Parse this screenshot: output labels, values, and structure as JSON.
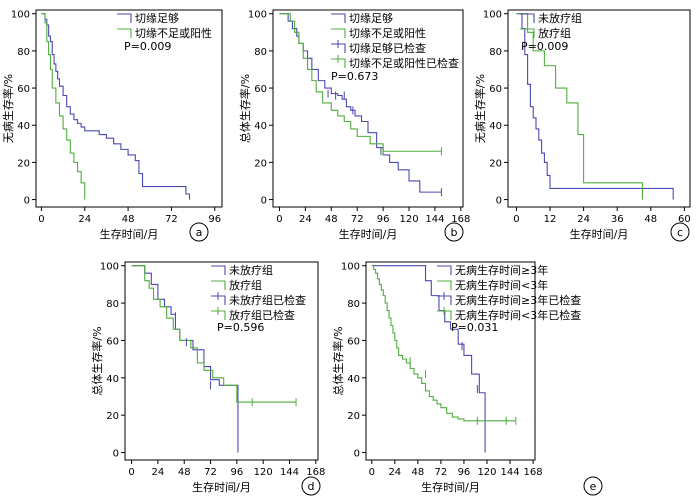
{
  "colors": {
    "blue": "#4a4ab2",
    "green": "#4fae3d",
    "axis": "#000000"
  },
  "chart_data": [
    {
      "id": "a",
      "type": "line",
      "xlabel": "生存时间/月",
      "ylabel": "无病生存率/%",
      "xticks": [
        0,
        24,
        48,
        72,
        96
      ],
      "yticks": [
        0,
        20,
        40,
        60,
        80,
        100
      ],
      "xlim": [
        -3,
        100
      ],
      "ylim": [
        -4,
        102
      ],
      "legend": [
        "切缘足够",
        "切缘不足或阳性"
      ],
      "pvalue": "P=0.009",
      "series": [
        {
          "name": "切缘足够",
          "color": "blue",
          "x": [
            0,
            2,
            3,
            4,
            5,
            6,
            7,
            8,
            9,
            10,
            12,
            14,
            16,
            18,
            20,
            22,
            24,
            28,
            32,
            36,
            40,
            44,
            48,
            52,
            54,
            56,
            60,
            70,
            80,
            82
          ],
          "y": [
            100,
            97,
            94,
            88,
            85,
            78,
            73,
            69,
            65,
            61,
            56,
            50,
            46,
            43,
            41,
            39,
            37,
            37,
            35,
            33,
            30,
            27,
            24,
            21,
            14,
            7,
            7,
            7,
            3,
            0
          ]
        },
        {
          "name": "切缘不足或阳性",
          "color": "green",
          "x": [
            0,
            2,
            3,
            4,
            5,
            6,
            8,
            10,
            12,
            14,
            16,
            18,
            20,
            22,
            24
          ],
          "y": [
            100,
            95,
            85,
            78,
            70,
            60,
            52,
            45,
            38,
            32,
            25,
            20,
            15,
            9,
            0
          ]
        }
      ],
      "censors": []
    },
    {
      "id": "b",
      "type": "line",
      "xlabel": "生存时间/月",
      "ylabel": "总体生存率/%",
      "xticks": [
        0,
        24,
        48,
        72,
        96,
        120,
        144,
        168
      ],
      "yticks": [
        0,
        20,
        40,
        60,
        80,
        100
      ],
      "xlim": [
        -6,
        170
      ],
      "ylim": [
        -4,
        102
      ],
      "legend": [
        "切缘足够",
        "切缘不足或阳性",
        "切缘足够已检查",
        "切缘不足或阳性已检查"
      ],
      "pvalue": "P=0.673",
      "series": [
        {
          "name": "切缘足够",
          "color": "blue",
          "x": [
            0,
            8,
            12,
            16,
            18,
            22,
            26,
            30,
            36,
            42,
            48,
            54,
            58,
            62,
            66,
            70,
            76,
            82,
            90,
            96,
            102,
            110,
            120,
            130,
            150
          ],
          "y": [
            100,
            96,
            92,
            88,
            84,
            80,
            76,
            70,
            64,
            60,
            57,
            56,
            54,
            50,
            48,
            45,
            42,
            36,
            28,
            24,
            20,
            16,
            10,
            4,
            4
          ]
        },
        {
          "name": "切缘不足或阳性",
          "color": "green",
          "x": [
            0,
            10,
            14,
            18,
            22,
            26,
            30,
            34,
            40,
            48,
            54,
            60,
            66,
            72,
            84,
            96,
            150
          ],
          "y": [
            100,
            96,
            90,
            84,
            76,
            70,
            64,
            58,
            52,
            48,
            45,
            42,
            38,
            34,
            30,
            26,
            26
          ]
        }
      ],
      "censors": [
        {
          "color": "blue",
          "x": [
            45,
            52,
            60,
            68,
            94,
            150
          ],
          "y": [
            57,
            56,
            56,
            48,
            26,
            4
          ]
        },
        {
          "color": "green",
          "x": [
            96,
            150
          ],
          "y": [
            26,
            26
          ]
        }
      ]
    },
    {
      "id": "c",
      "type": "line",
      "xlabel": "生存时间/月",
      "ylabel": "无病生存率/%",
      "xticks": [
        0,
        12,
        24,
        36,
        48,
        60
      ],
      "yticks": [
        0,
        20,
        40,
        60,
        80,
        100
      ],
      "xlim": [
        -3,
        62
      ],
      "ylim": [
        -4,
        102
      ],
      "legend": [
        "未放疗组",
        "放疗组"
      ],
      "pvalue": "P=0.009",
      "series": [
        {
          "name": "未放疗组",
          "color": "blue",
          "x": [
            0,
            2,
            3,
            4,
            5,
            6,
            7,
            8,
            9,
            10,
            11,
            12,
            14,
            56
          ],
          "y": [
            100,
            92,
            78,
            62,
            50,
            44,
            38,
            32,
            25,
            20,
            13,
            6,
            6,
            0
          ]
        },
        {
          "name": "放疗组",
          "color": "green",
          "x": [
            0,
            4,
            6,
            10,
            14,
            18,
            22,
            24,
            45
          ],
          "y": [
            100,
            90,
            80,
            72,
            60,
            52,
            35,
            9,
            0
          ]
        }
      ],
      "censors": []
    },
    {
      "id": "d",
      "type": "line",
      "xlabel": "生存时间/月",
      "ylabel": "总体生存率/%",
      "xticks": [
        0,
        24,
        48,
        72,
        96,
        120,
        144,
        168
      ],
      "yticks": [
        0,
        20,
        40,
        60,
        80,
        100
      ],
      "xlim": [
        -6,
        170
      ],
      "ylim": [
        -4,
        102
      ],
      "legend": [
        "未放疗组",
        "放疗组",
        "未放疗组已检查",
        "放疗组已检查"
      ],
      "pvalue": "P=0.596",
      "series": [
        {
          "name": "未放疗组",
          "color": "blue",
          "x": [
            0,
            12,
            18,
            24,
            30,
            36,
            40,
            44,
            56,
            66,
            72,
            80,
            96,
            97
          ],
          "y": [
            100,
            96,
            90,
            82,
            78,
            74,
            66,
            60,
            55,
            46,
            39,
            36,
            36,
            0
          ]
        },
        {
          "name": "放疗组",
          "color": "green",
          "x": [
            0,
            12,
            16,
            20,
            26,
            32,
            38,
            44,
            54,
            60,
            66,
            74,
            84,
            96,
            150
          ],
          "y": [
            100,
            92,
            88,
            82,
            78,
            72,
            66,
            60,
            56,
            48,
            44,
            40,
            36,
            27,
            27
          ]
        }
      ],
      "censors": [
        {
          "color": "blue",
          "x": [
            40,
            50,
            72
          ],
          "y": [
            73,
            59,
            36
          ]
        },
        {
          "color": "green",
          "x": [
            110,
            150
          ],
          "y": [
            27,
            27
          ]
        }
      ]
    },
    {
      "id": "e",
      "type": "line",
      "xlabel": "生存时间/月",
      "ylabel": "总体生存率/%",
      "xticks": [
        0,
        24,
        48,
        72,
        96,
        120,
        144,
        168
      ],
      "yticks": [
        0,
        20,
        40,
        60,
        80,
        100
      ],
      "xlim": [
        -6,
        170
      ],
      "ylim": [
        -4,
        102
      ],
      "legend": [
        "无病生存时间≥3年",
        "无病生存时间<3年",
        "无病生存时间≥3年已检查",
        "无病生存时间<3年已检查"
      ],
      "pvalue": "P=0.031",
      "series": [
        {
          "name": "无病生存时间≥3年",
          "color": "blue",
          "x": [
            0,
            48,
            56,
            62,
            70,
            76,
            82,
            90,
            96,
            104,
            112,
            118
          ],
          "y": [
            100,
            100,
            92,
            84,
            76,
            70,
            66,
            58,
            52,
            42,
            32,
            0
          ]
        },
        {
          "name": "无病生存时间<3年",
          "color": "green",
          "x": [
            0,
            2,
            4,
            6,
            8,
            10,
            12,
            14,
            16,
            18,
            20,
            22,
            24,
            26,
            28,
            32,
            36,
            40,
            44,
            48,
            52,
            56,
            60,
            64,
            68,
            72,
            78,
            84,
            90,
            96,
            150
          ],
          "y": [
            100,
            98,
            96,
            93,
            90,
            87,
            84,
            80,
            76,
            72,
            68,
            64,
            60,
            56,
            52,
            50,
            48,
            45,
            42,
            40,
            37,
            33,
            30,
            28,
            26,
            24,
            21,
            19,
            18,
            17,
            17
          ]
        }
      ],
      "censors": [
        {
          "color": "blue",
          "x": [
            94,
            110
          ],
          "y": [
            57,
            34
          ]
        },
        {
          "color": "green",
          "x": [
            40,
            56,
            110,
            140,
            150
          ],
          "y": [
            49,
            42,
            17,
            17,
            17
          ]
        }
      ]
    }
  ],
  "panel_labels": [
    "a",
    "b",
    "c",
    "d",
    "e"
  ]
}
